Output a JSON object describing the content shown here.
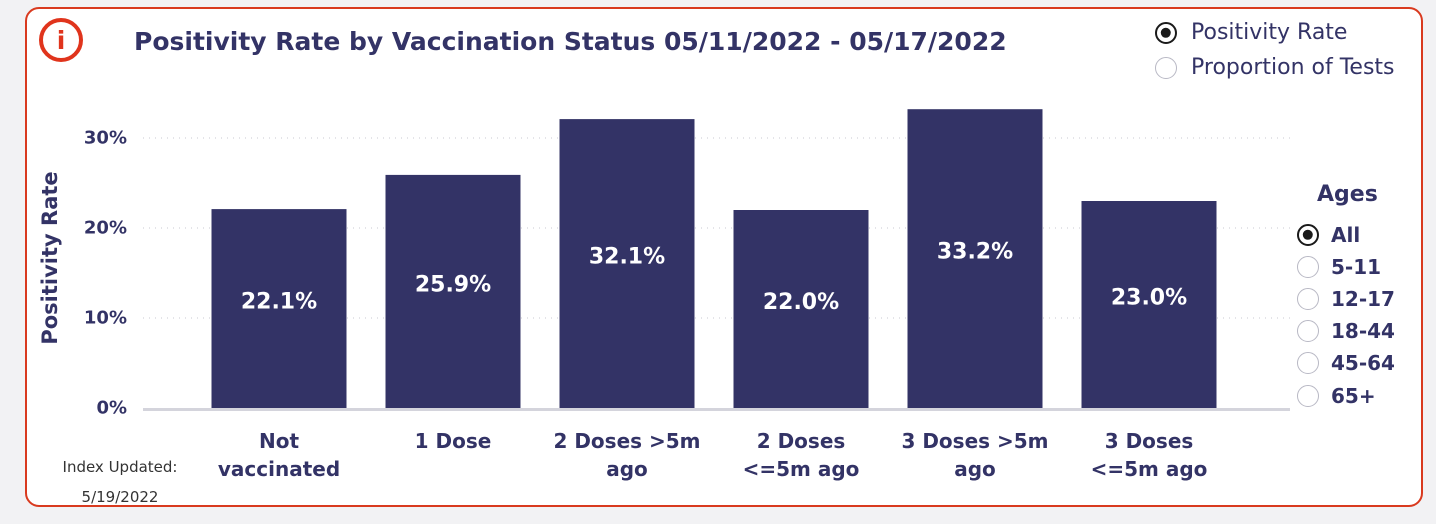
{
  "title": "Positivity Rate by Vaccination Status 05/11/2022 - 05/17/2022",
  "info_icon": "info-icon",
  "metric_options": [
    {
      "label": "Positivity Rate",
      "selected": true
    },
    {
      "label": "Proportion of Tests",
      "selected": false
    }
  ],
  "ages": {
    "title": "Ages",
    "options": [
      {
        "label": "All",
        "selected": true
      },
      {
        "label": "5-11",
        "selected": false
      },
      {
        "label": "12-17",
        "selected": false
      },
      {
        "label": "18-44",
        "selected": false
      },
      {
        "label": "45-64",
        "selected": false
      },
      {
        "label": "65+",
        "selected": false
      }
    ]
  },
  "index_updated": {
    "label": "Index Updated:",
    "date": "5/19/2022"
  },
  "colors": {
    "bar": "#333366",
    "accent": "#e0341c",
    "text": "#333366"
  },
  "chart_data": {
    "type": "bar",
    "ylabel": "Positivity Rate",
    "xlabel": "",
    "ylim": [
      0,
      35
    ],
    "yticks": [
      0,
      10,
      20,
      30
    ],
    "ytick_labels": [
      "0%",
      "10%",
      "20%",
      "30%"
    ],
    "grid": true,
    "categories": [
      "Not\nvaccinated",
      "1 Dose",
      "2 Doses >5m\nago",
      "2 Doses\n<=5m ago",
      "3 Doses >5m\nago",
      "3 Doses\n<=5m ago"
    ],
    "values": [
      22.1,
      25.9,
      32.1,
      22.0,
      33.2,
      23.0
    ],
    "data_labels": [
      "22.1%",
      "25.9%",
      "32.1%",
      "22.0%",
      "33.2%",
      "23.0%"
    ]
  }
}
